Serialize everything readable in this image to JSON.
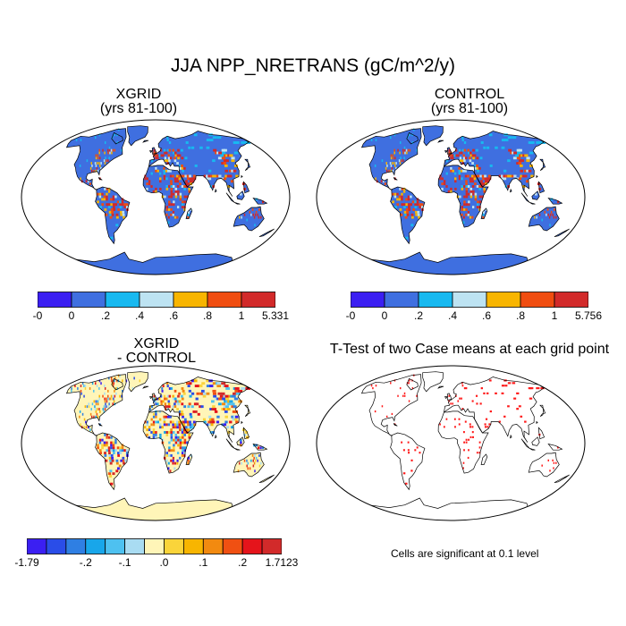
{
  "title": "JJA NPP_NRETRANS (gC/m^2/y)",
  "panels": [
    {
      "id": "xgrid",
      "title_line1": "XGRID",
      "title_line2": "(yrs 81-100)"
    },
    {
      "id": "control",
      "title_line1": "CONTROL",
      "title_line2": "(yrs 81-100)"
    },
    {
      "id": "diff",
      "title_line1": "XGRID",
      "title_line2": "- CONTROL"
    },
    {
      "id": "ttest",
      "title_line1": "T-Test of two Case means at each grid point",
      "title_line2": ""
    }
  ],
  "colorbars": {
    "xgrid": {
      "colors": [
        "#3b1ff2",
        "#3f6fe0",
        "#18b9f0",
        "#bde3f2",
        "#f8b500",
        "#f04d10",
        "#d22a2a"
      ],
      "labels": [
        "-0",
        "0",
        ".2",
        ".4",
        ".6",
        ".8",
        "1",
        "5.331"
      ]
    },
    "control": {
      "colors": [
        "#3b1ff2",
        "#3f6fe0",
        "#18b9f0",
        "#bde3f2",
        "#f8b500",
        "#f04d10",
        "#d22a2a"
      ],
      "labels": [
        "-0",
        "0",
        ".2",
        ".4",
        ".6",
        ".8",
        "1",
        "5.756"
      ]
    },
    "diff": {
      "colors": [
        "#3b1ff2",
        "#2a4de8",
        "#2f7fe3",
        "#18a6ea",
        "#4ec1f0",
        "#a9dcf2",
        "#fff5b8",
        "#fad43a",
        "#f8b500",
        "#f28a10",
        "#f05012",
        "#e5141b",
        "#d22a2a"
      ],
      "labels": [
        "-1.79",
        "-.2",
        "-.1",
        ".0",
        ".1",
        ".2",
        "1.7123"
      ]
    }
  },
  "ttest_note": "Cells are significant at 0.1 level",
  "map_colors": {
    "ocean": "#ffffff",
    "land_field": "#3f6fe0",
    "land_diff": "#fff5b8",
    "significant": "#ff1a1a"
  }
}
